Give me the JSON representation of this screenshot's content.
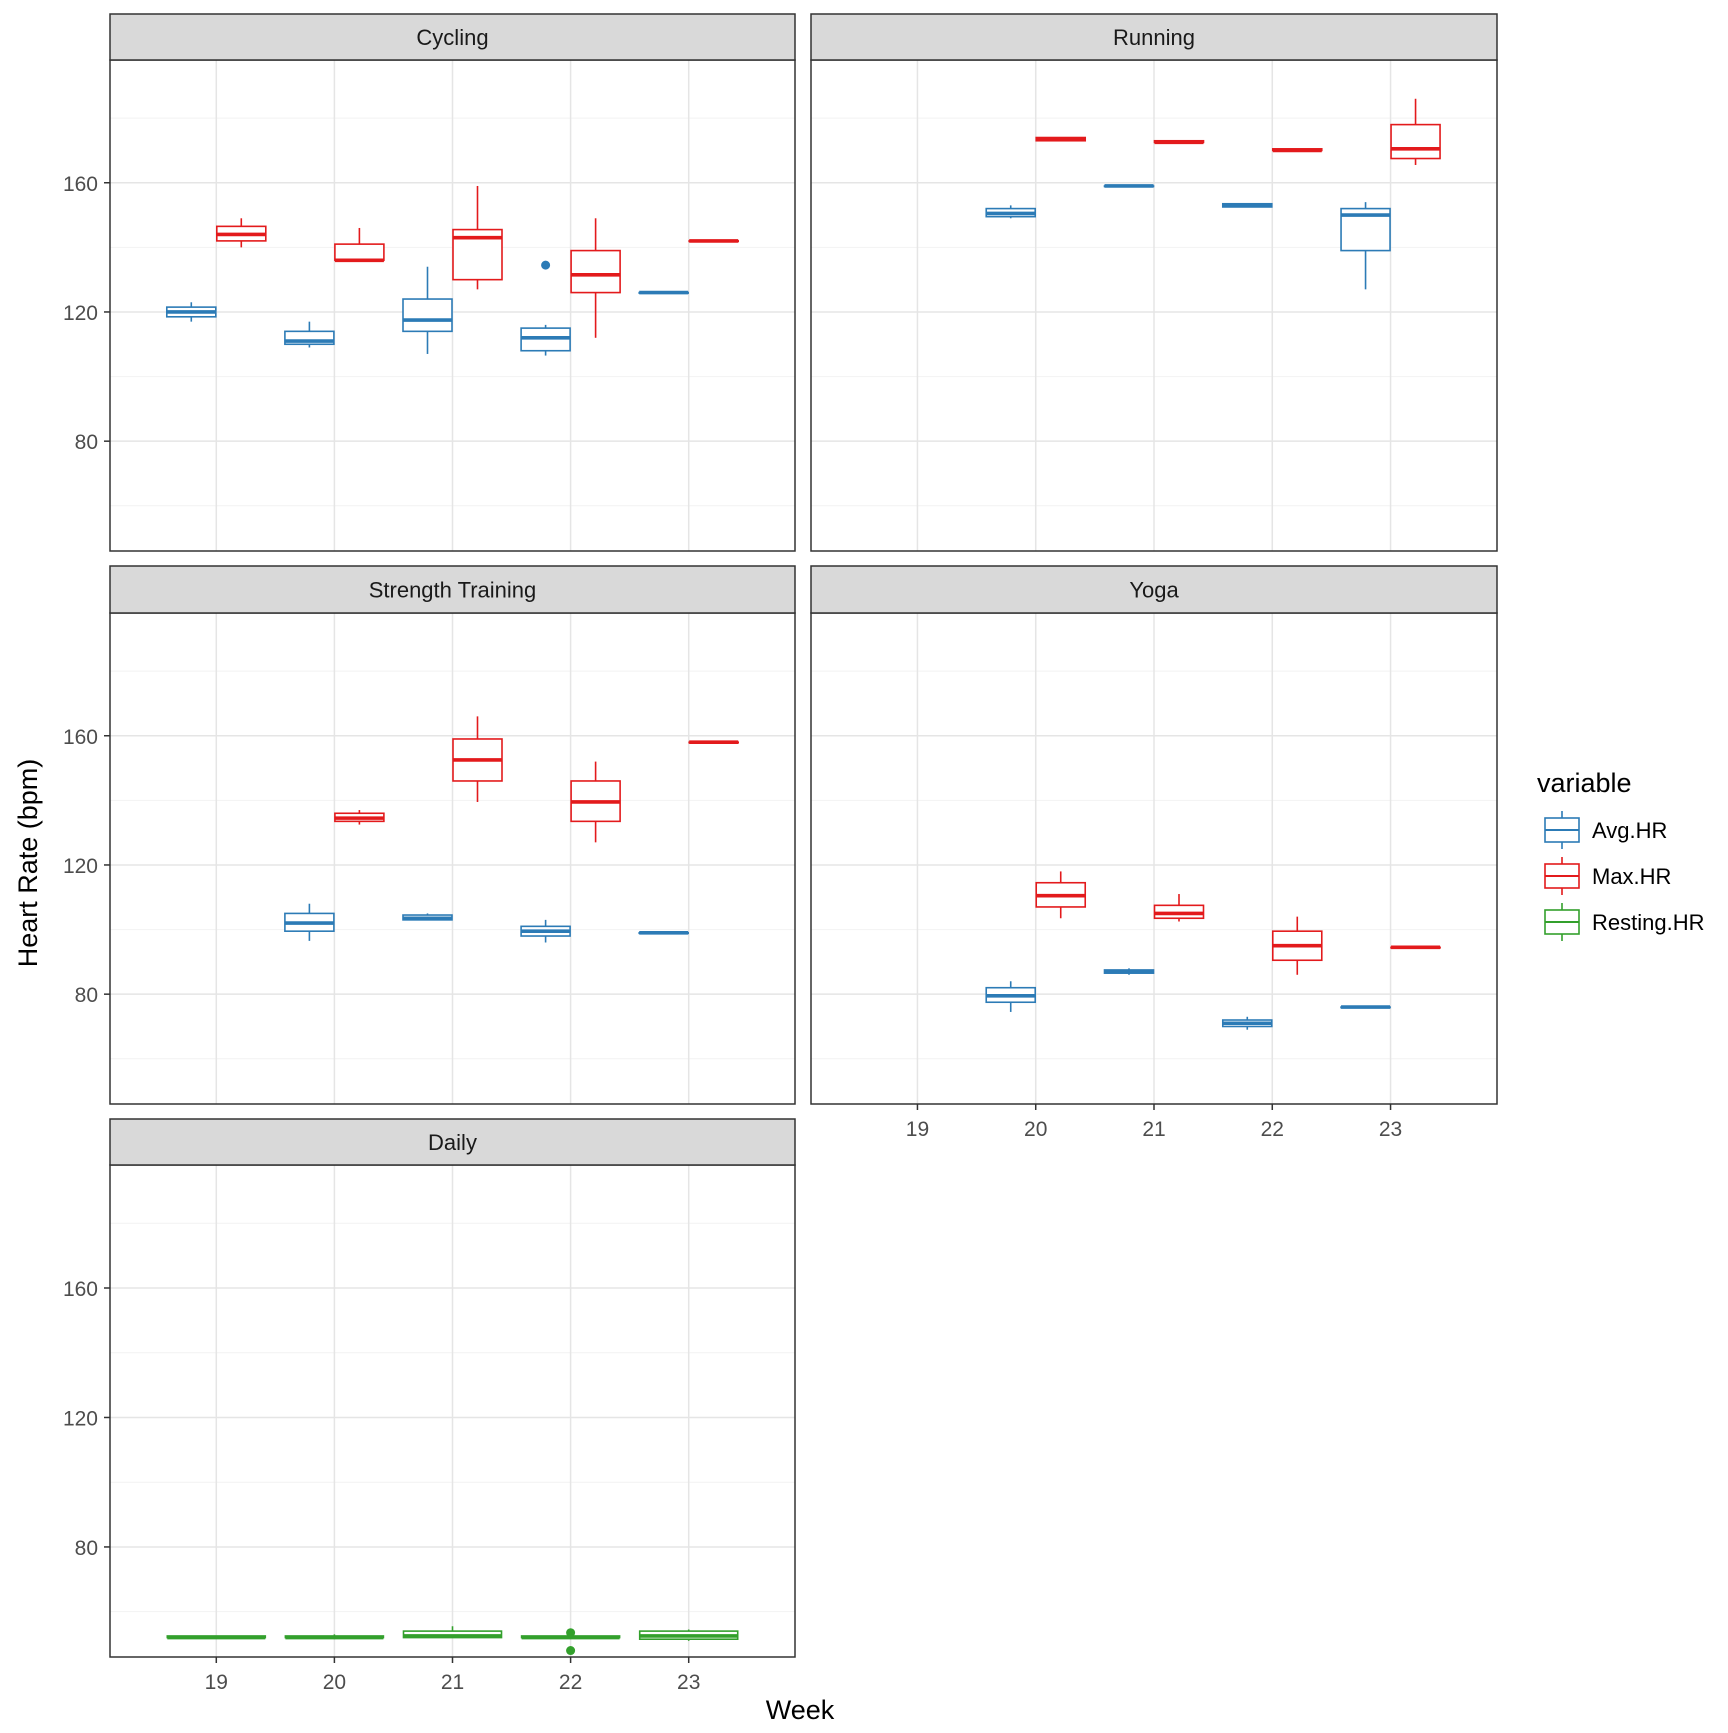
{
  "chart_data": {
    "type": "boxplot",
    "xlabel": "Week",
    "ylabel": "Heart Rate (bpm)",
    "x_categories": [
      "19",
      "20",
      "21",
      "22",
      "23"
    ],
    "y_ticks": [
      80,
      120,
      160
    ],
    "ylim": [
      46,
      198
    ],
    "grid": true,
    "legend": {
      "title": "variable",
      "position": "right",
      "entries": [
        "Avg.HR",
        "Max.HR",
        "Resting.HR"
      ]
    },
    "colors": {
      "Avg.HR": "#2c7bb6",
      "Max.HR": "#e31a1c",
      "Resting.HR": "#33a02c"
    },
    "panels": [
      {
        "title": "Cycling",
        "boxes": [
          {
            "week": "19",
            "variable": "Avg.HR",
            "min": 117,
            "q1": 118.5,
            "median": 120,
            "q3": 121.5,
            "max": 123,
            "outliers": []
          },
          {
            "week": "19",
            "variable": "Max.HR",
            "min": 140,
            "q1": 142,
            "median": 144,
            "q3": 146.5,
            "max": 149,
            "outliers": []
          },
          {
            "week": "20",
            "variable": "Avg.HR",
            "min": 109,
            "q1": 110,
            "median": 111,
            "q3": 114,
            "max": 117,
            "outliers": []
          },
          {
            "week": "20",
            "variable": "Max.HR",
            "min": 136,
            "q1": 136,
            "median": 136,
            "q3": 141,
            "max": 146,
            "outliers": []
          },
          {
            "week": "21",
            "variable": "Avg.HR",
            "min": 107,
            "q1": 114,
            "median": 117.5,
            "q3": 124,
            "max": 134,
            "outliers": []
          },
          {
            "week": "21",
            "variable": "Max.HR",
            "min": 127,
            "q1": 130,
            "median": 143,
            "q3": 145.5,
            "max": 159,
            "outliers": []
          },
          {
            "week": "22",
            "variable": "Avg.HR",
            "min": 106.5,
            "q1": 108,
            "median": 112,
            "q3": 115,
            "max": 116,
            "outliers": [
              134.5
            ]
          },
          {
            "week": "22",
            "variable": "Max.HR",
            "min": 112,
            "q1": 126,
            "median": 131.5,
            "q3": 139,
            "max": 149,
            "outliers": []
          },
          {
            "week": "23",
            "variable": "Avg.HR",
            "min": 126,
            "q1": 126,
            "median": 126,
            "q3": 126,
            "max": 126,
            "outliers": []
          },
          {
            "week": "23",
            "variable": "Max.HR",
            "min": 142,
            "q1": 142,
            "median": 142,
            "q3": 142,
            "max": 142,
            "outliers": []
          }
        ]
      },
      {
        "title": "Running",
        "boxes": [
          {
            "week": "20",
            "variable": "Avg.HR",
            "min": 149,
            "q1": 149.5,
            "median": 150.5,
            "q3": 152,
            "max": 153,
            "outliers": []
          },
          {
            "week": "20",
            "variable": "Max.HR",
            "min": 173,
            "q1": 173,
            "median": 173.5,
            "q3": 174,
            "max": 174,
            "outliers": []
          },
          {
            "week": "21",
            "variable": "Avg.HR",
            "min": 159,
            "q1": 159,
            "median": 159,
            "q3": 159,
            "max": 159,
            "outliers": []
          },
          {
            "week": "21",
            "variable": "Max.HR",
            "min": 172.5,
            "q1": 172.5,
            "median": 172.5,
            "q3": 173,
            "max": 173,
            "outliers": []
          },
          {
            "week": "22",
            "variable": "Avg.HR",
            "min": 152.5,
            "q1": 152.5,
            "median": 153,
            "q3": 153.5,
            "max": 153.5,
            "outliers": []
          },
          {
            "week": "22",
            "variable": "Max.HR",
            "min": 170,
            "q1": 170,
            "median": 170,
            "q3": 170.5,
            "max": 170.5,
            "outliers": []
          },
          {
            "week": "23",
            "variable": "Avg.HR",
            "min": 127,
            "q1": 139,
            "median": 150,
            "q3": 152,
            "max": 154,
            "outliers": []
          },
          {
            "week": "23",
            "variable": "Max.HR",
            "min": 165.5,
            "q1": 167.5,
            "median": 170.5,
            "q3": 178,
            "max": 186,
            "outliers": []
          }
        ]
      },
      {
        "title": "Strength Training",
        "boxes": [
          {
            "week": "20",
            "variable": "Avg.HR",
            "min": 96.5,
            "q1": 99.5,
            "median": 102,
            "q3": 105,
            "max": 108,
            "outliers": []
          },
          {
            "week": "20",
            "variable": "Max.HR",
            "min": 132.5,
            "q1": 133.5,
            "median": 134.5,
            "q3": 136,
            "max": 137,
            "outliers": []
          },
          {
            "week": "21",
            "variable": "Avg.HR",
            "min": 103,
            "q1": 103,
            "median": 103.5,
            "q3": 104.5,
            "max": 105,
            "outliers": []
          },
          {
            "week": "21",
            "variable": "Max.HR",
            "min": 139.5,
            "q1": 146,
            "median": 152.5,
            "q3": 159,
            "max": 166,
            "outliers": []
          },
          {
            "week": "22",
            "variable": "Avg.HR",
            "min": 96,
            "q1": 98,
            "median": 99.5,
            "q3": 101,
            "max": 103,
            "outliers": []
          },
          {
            "week": "22",
            "variable": "Max.HR",
            "min": 127,
            "q1": 133.5,
            "median": 139.5,
            "q3": 146,
            "max": 152,
            "outliers": []
          },
          {
            "week": "23",
            "variable": "Avg.HR",
            "min": 99,
            "q1": 99,
            "median": 99,
            "q3": 99,
            "max": 99,
            "outliers": []
          },
          {
            "week": "23",
            "variable": "Max.HR",
            "min": 158,
            "q1": 158,
            "median": 158,
            "q3": 158,
            "max": 158,
            "outliers": []
          }
        ]
      },
      {
        "title": "Yoga",
        "boxes": [
          {
            "week": "20",
            "variable": "Avg.HR",
            "min": 74.5,
            "q1": 77.5,
            "median": 79.5,
            "q3": 82,
            "max": 84,
            "outliers": []
          },
          {
            "week": "20",
            "variable": "Max.HR",
            "min": 103.5,
            "q1": 107,
            "median": 110.5,
            "q3": 114.5,
            "max": 118,
            "outliers": []
          },
          {
            "week": "21",
            "variable": "Avg.HR",
            "min": 86,
            "q1": 86.5,
            "median": 87,
            "q3": 87.5,
            "max": 88,
            "outliers": []
          },
          {
            "week": "21",
            "variable": "Max.HR",
            "min": 102.5,
            "q1": 103.5,
            "median": 105,
            "q3": 107.5,
            "max": 111,
            "outliers": []
          },
          {
            "week": "22",
            "variable": "Avg.HR",
            "min": 69,
            "q1": 70,
            "median": 71,
            "q3": 72,
            "max": 73,
            "outliers": []
          },
          {
            "week": "22",
            "variable": "Max.HR",
            "min": 86,
            "q1": 90.5,
            "median": 95,
            "q3": 99.5,
            "max": 104,
            "outliers": []
          },
          {
            "week": "23",
            "variable": "Avg.HR",
            "min": 76,
            "q1": 76,
            "median": 76,
            "q3": 76,
            "max": 76,
            "outliers": []
          },
          {
            "week": "23",
            "variable": "Max.HR",
            "min": 94.5,
            "q1": 94.5,
            "median": 94.5,
            "q3": 94.5,
            "max": 94.5,
            "outliers": []
          }
        ]
      },
      {
        "title": "Daily",
        "boxes": [
          {
            "week": "19",
            "variable": "Resting.HR",
            "min": 52,
            "q1": 52,
            "median": 52,
            "q3": 52.5,
            "max": 52.5,
            "outliers": []
          },
          {
            "week": "20",
            "variable": "Resting.HR",
            "min": 51.5,
            "q1": 52,
            "median": 52,
            "q3": 52.5,
            "max": 53,
            "outliers": []
          },
          {
            "week": "21",
            "variable": "Resting.HR",
            "min": 52,
            "q1": 52,
            "median": 52.5,
            "q3": 54,
            "max": 55.5,
            "outliers": []
          },
          {
            "week": "22",
            "variable": "Resting.HR",
            "min": 51.5,
            "q1": 52,
            "median": 52,
            "q3": 52.5,
            "max": 53,
            "outliers": [
              48,
              53.5
            ]
          },
          {
            "week": "23",
            "variable": "Resting.HR",
            "min": 51,
            "q1": 51.5,
            "median": 52.5,
            "q3": 54,
            "max": 54.5,
            "outliers": []
          }
        ]
      }
    ]
  }
}
